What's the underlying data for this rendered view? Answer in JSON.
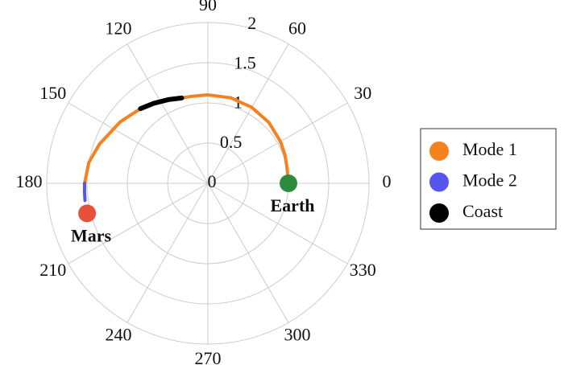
{
  "chart_data": {
    "type": "polar-line",
    "rlim": [
      0,
      2
    ],
    "rticks": [
      0,
      0.5,
      1,
      1.5,
      2
    ],
    "thetaticks": [
      0,
      30,
      60,
      90,
      120,
      150,
      180,
      210,
      240,
      270,
      300,
      330
    ],
    "grid": true,
    "legend": "right",
    "series": [
      {
        "name": "Mode 1",
        "color": "#f5821f",
        "theta": [
          0,
          10,
          20,
          30,
          45,
          60,
          75,
          90,
          100,
          107,
          null,
          132,
          145,
          160,
          170,
          180
        ],
        "r": [
          1.0,
          1.0,
          1.02,
          1.04,
          1.07,
          1.09,
          1.1,
          1.1,
          1.1,
          1.11,
          null,
          1.25,
          1.33,
          1.43,
          1.5,
          1.53
        ]
      },
      {
        "name": "Mode 2",
        "color": "#5555ee",
        "theta": [
          180,
          184,
          188
        ],
        "r": [
          1.53,
          1.535,
          1.54
        ]
      },
      {
        "name": "Coast",
        "color": "#000000",
        "theta": [
          107,
          115,
          124,
          132
        ],
        "r": [
          1.11,
          1.15,
          1.2,
          1.25
        ]
      }
    ],
    "points": [
      {
        "name": "Earth",
        "theta": 0,
        "r": 1.0,
        "color": "#2e8b3e"
      },
      {
        "name": "Mars",
        "theta": 194,
        "r": 1.545,
        "color": "#e8503a"
      }
    ]
  }
}
